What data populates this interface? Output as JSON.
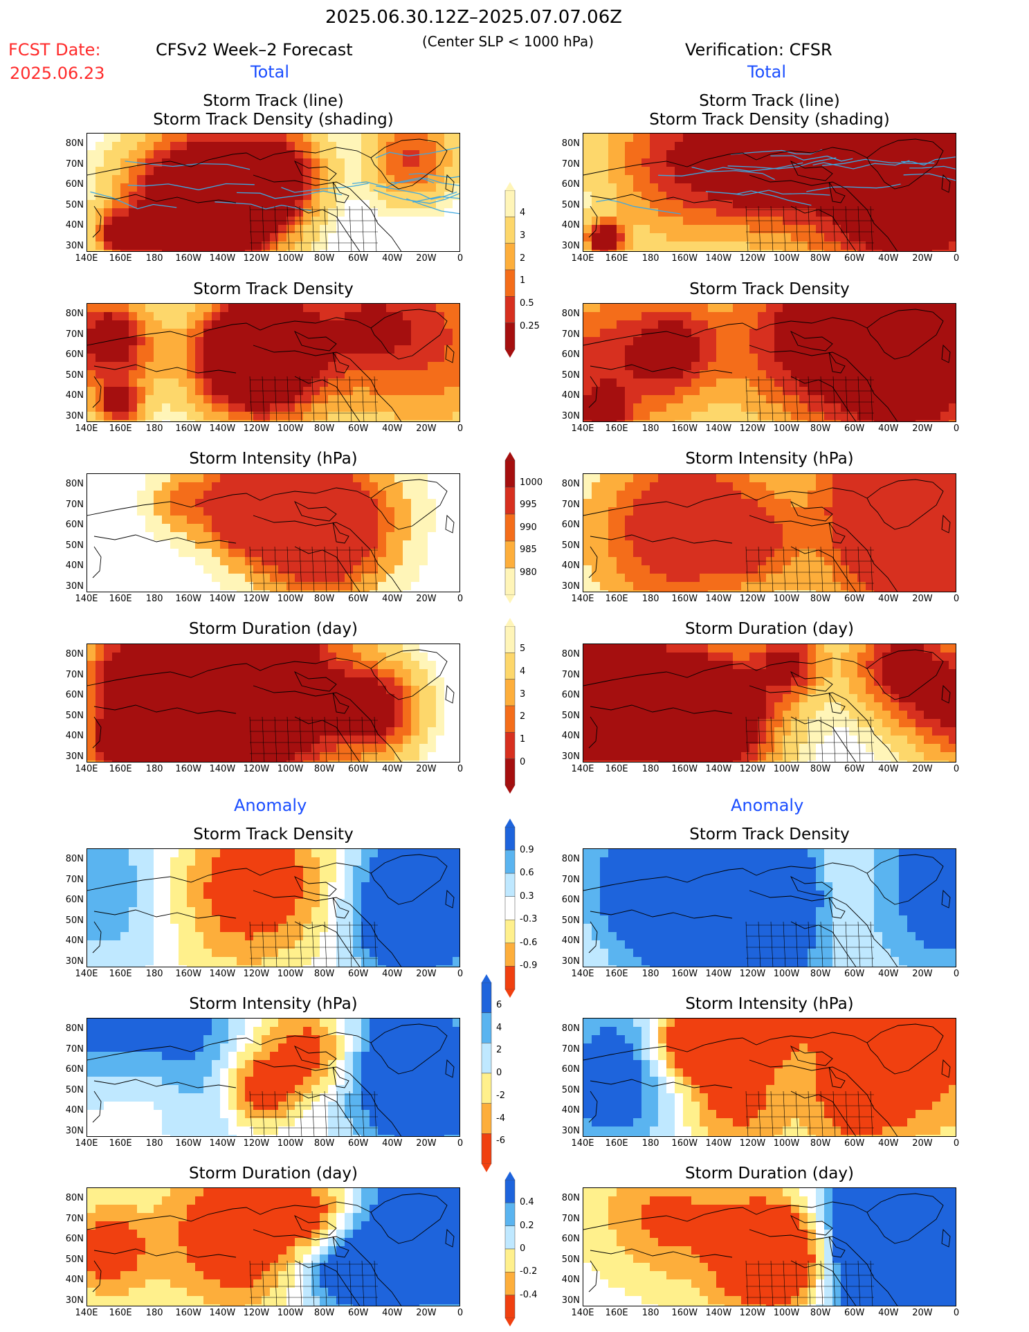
{
  "header": {
    "period": "2025.06.30.12Z–2025.07.07.06Z",
    "criterion": "(Center SLP < 1000 hPa)",
    "fcst_label": "FCST Date:",
    "fcst_date": "2025.06.23",
    "left_title": "CFSv2 Week–2 Forecast",
    "right_title": "Verification: CFSR",
    "total_left": "Total",
    "total_right": "Total",
    "anomaly_left": "Anomaly",
    "anomaly_right": "Anomaly"
  },
  "panel_titles": {
    "track_line": "Storm Track (line)",
    "track_shading": "Storm Track Density (shading)",
    "density": "Storm Track Density",
    "intensity": "Storm Intensity (hPa)",
    "duration": "Storm Duration (day)"
  },
  "axes": {
    "lat": [
      "80N",
      "70N",
      "60N",
      "50N",
      "40N",
      "30N"
    ],
    "lon": [
      "140E",
      "160E",
      "180",
      "160W",
      "140W",
      "120W",
      "100W",
      "80W",
      "60W",
      "40W",
      "20W",
      "0"
    ]
  },
  "colorbars": {
    "density": {
      "labels": [
        "4",
        "3",
        "2",
        "1",
        "0.5",
        "0.25"
      ],
      "colors": [
        "#a50f0f",
        "#d7301f",
        "#f46d1a",
        "#fdae3b",
        "#fdd76b",
        "#fff5b8"
      ]
    },
    "intensity": {
      "labels": [
        "1000",
        "995",
        "990",
        "985",
        "980"
      ],
      "colors": [
        "#fff5b8",
        "#fdae3b",
        "#f46d1a",
        "#d7301f",
        "#a50f0f"
      ]
    },
    "duration": {
      "labels": [
        "5",
        "4",
        "3",
        "2",
        "1",
        "0"
      ],
      "colors": [
        "#a50f0f",
        "#d7301f",
        "#f46d1a",
        "#fdae3b",
        "#fdd76b",
        "#fff5b8"
      ]
    },
    "anom_density": {
      "labels": [
        "0.9",
        "0.6",
        "0.3",
        "-0.3",
        "-0.6",
        "-0.9"
      ],
      "colors": [
        "#f04010",
        "#fdae3b",
        "#fff08c",
        "#ffffff",
        "#bfe8ff",
        "#5ab4f0",
        "#1e64dc"
      ]
    },
    "anom_intensity": {
      "labels": [
        "6",
        "4",
        "2",
        "0",
        "-2",
        "-4",
        "-6"
      ],
      "colors": [
        "#f04010",
        "#fdae3b",
        "#fff08c",
        "#bfe8ff",
        "#5ab4f0",
        "#1e64dc"
      ]
    },
    "anom_duration": {
      "labels": [
        "0.4",
        "0.2",
        "0",
        "-0.2",
        "-0.4"
      ],
      "colors": [
        "#f04010",
        "#fdae3b",
        "#fff08c",
        "#bfe8ff",
        "#5ab4f0",
        "#1e64dc"
      ]
    }
  },
  "panels": [
    {
      "id": "fcst-track-line",
      "palette": "seq",
      "lines": true
    },
    {
      "id": "verif-track-line",
      "palette": "seq",
      "lines": true
    },
    {
      "id": "fcst-density",
      "palette": "seq"
    },
    {
      "id": "verif-density",
      "palette": "seq"
    },
    {
      "id": "fcst-intensity",
      "palette": "int"
    },
    {
      "id": "verif-intensity",
      "palette": "int"
    },
    {
      "id": "fcst-duration",
      "palette": "seq"
    },
    {
      "id": "verif-duration",
      "palette": "seq"
    },
    {
      "id": "fcst-anom-density",
      "palette": "div"
    },
    {
      "id": "verif-anom-density",
      "palette": "div"
    },
    {
      "id": "fcst-anom-intensity",
      "palette": "div"
    },
    {
      "id": "verif-anom-intensity",
      "palette": "div"
    },
    {
      "id": "fcst-anom-duration",
      "palette": "div"
    },
    {
      "id": "verif-anom-duration",
      "palette": "div"
    }
  ]
}
